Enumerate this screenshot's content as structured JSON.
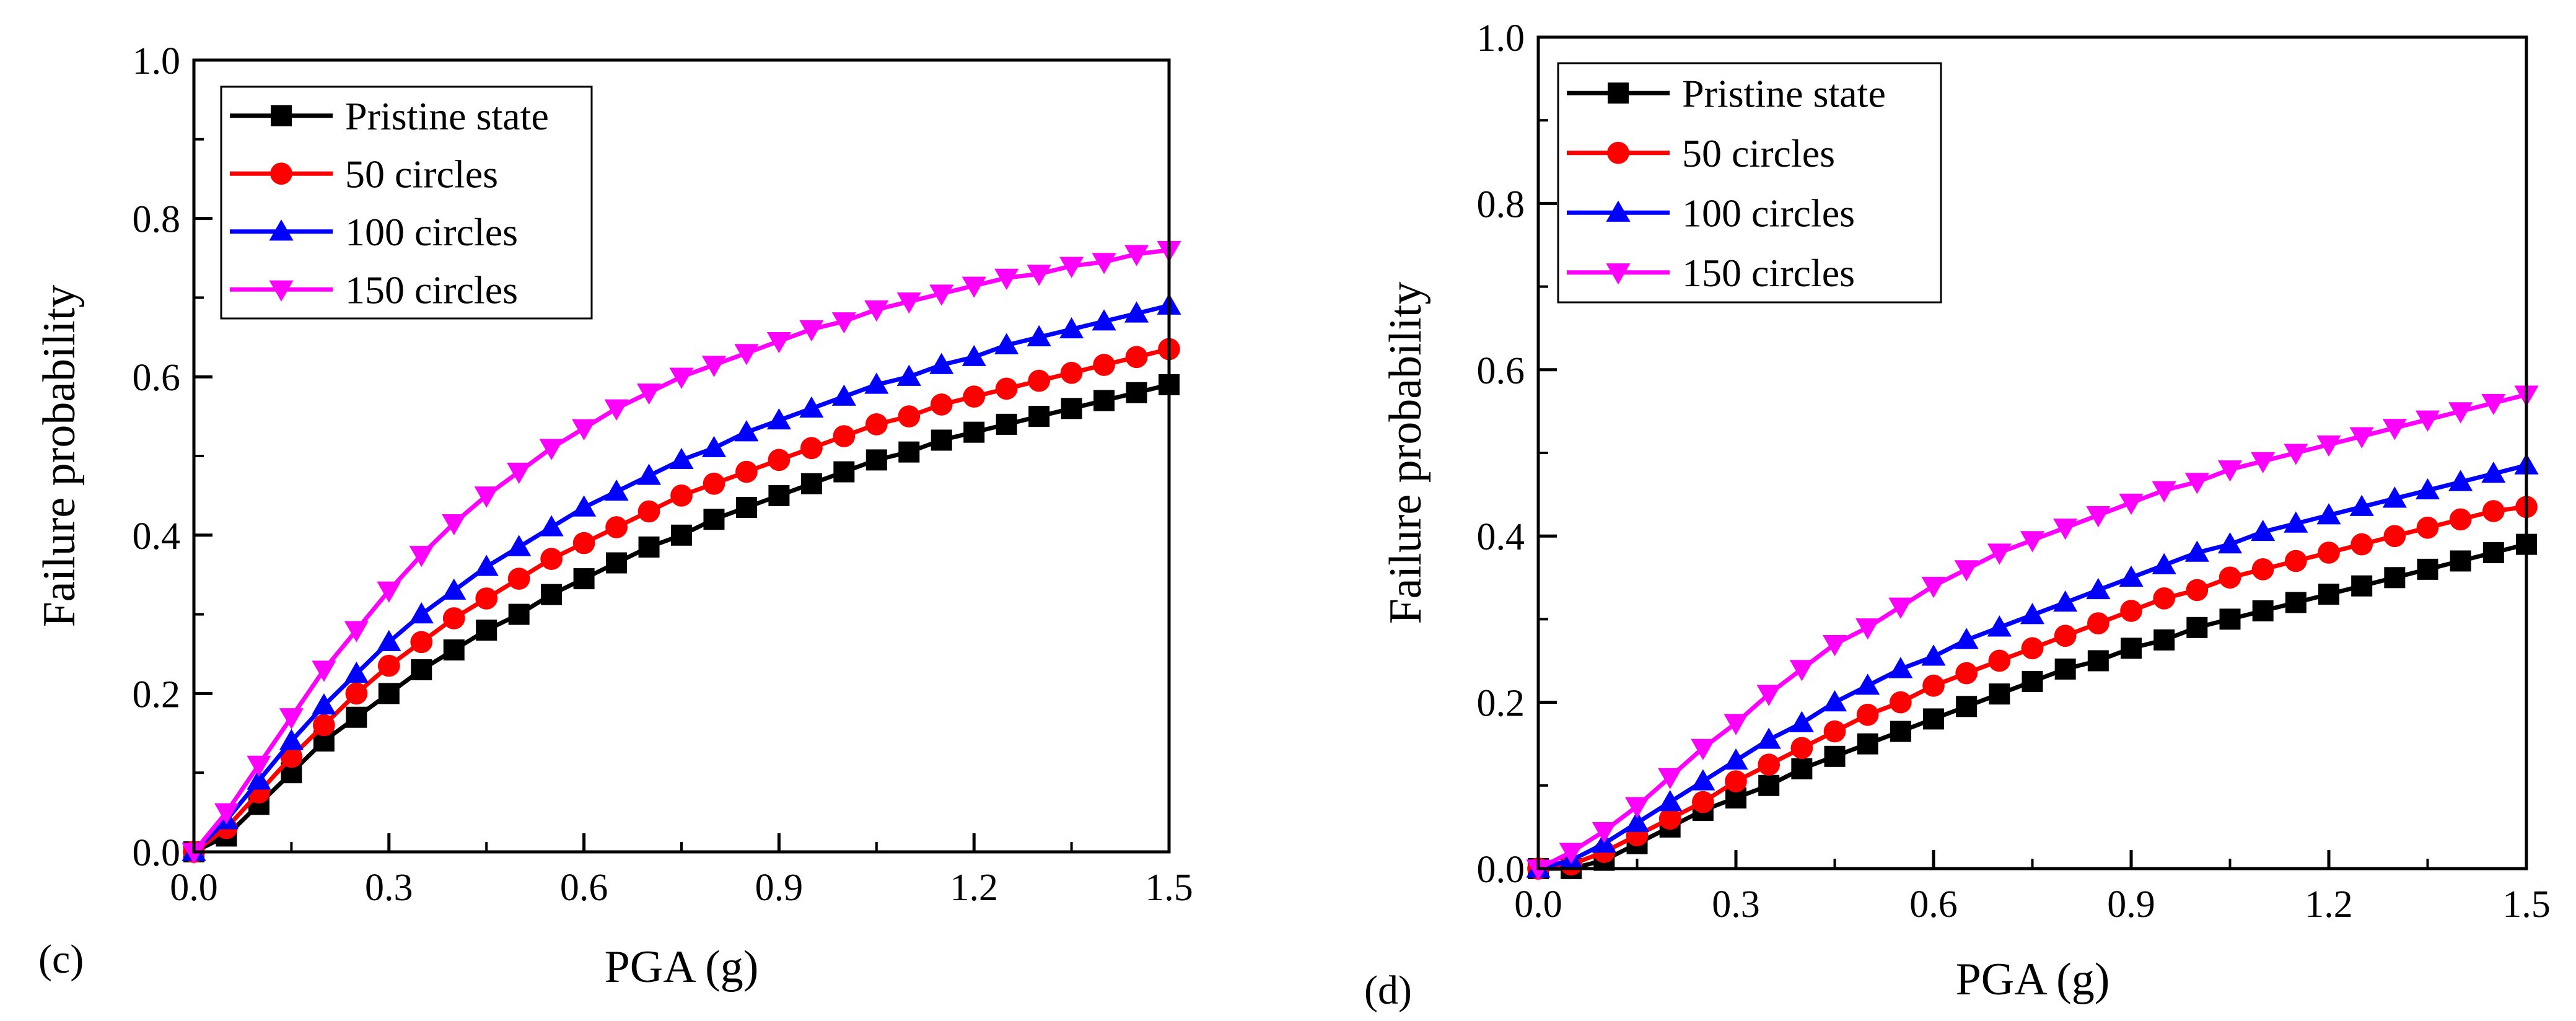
{
  "chart_data": [
    {
      "type": "line",
      "panel_label": "(c)",
      "xlabel": "PGA (g)",
      "ylabel": "Failure probability",
      "xlim": [
        0.0,
        1.5
      ],
      "ylim": [
        0.0,
        1.0
      ],
      "xticks": [
        "0.0",
        "0.3",
        "0.6",
        "0.9",
        "1.2",
        "1.5"
      ],
      "yticks": [
        "0.0",
        "0.2",
        "0.4",
        "0.6",
        "0.8",
        "1.0"
      ],
      "legend_position": "top-left",
      "x": [
        0.0,
        0.05,
        0.1,
        0.15,
        0.2,
        0.25,
        0.3,
        0.35,
        0.4,
        0.45,
        0.5,
        0.55,
        0.6,
        0.65,
        0.7,
        0.75,
        0.8,
        0.85,
        0.9,
        0.95,
        1.0,
        1.05,
        1.1,
        1.15,
        1.2,
        1.25,
        1.3,
        1.35,
        1.4,
        1.45,
        1.5
      ],
      "series": [
        {
          "name": "Pristine state",
          "color": "#000000",
          "marker": "square",
          "values": [
            0.0,
            0.02,
            0.06,
            0.1,
            0.14,
            0.17,
            0.2,
            0.23,
            0.255,
            0.28,
            0.3,
            0.325,
            0.345,
            0.365,
            0.385,
            0.4,
            0.42,
            0.435,
            0.45,
            0.465,
            0.48,
            0.495,
            0.505,
            0.52,
            0.53,
            0.54,
            0.55,
            0.56,
            0.57,
            0.58,
            0.59
          ]
        },
        {
          "name": "50 circles",
          "color": "#ff0000",
          "marker": "circle",
          "values": [
            0.0,
            0.03,
            0.075,
            0.12,
            0.16,
            0.2,
            0.235,
            0.265,
            0.295,
            0.32,
            0.345,
            0.37,
            0.39,
            0.41,
            0.43,
            0.45,
            0.465,
            0.48,
            0.495,
            0.51,
            0.525,
            0.54,
            0.55,
            0.565,
            0.575,
            0.585,
            0.595,
            0.605,
            0.615,
            0.625,
            0.635
          ]
        },
        {
          "name": "100 circles",
          "color": "#0000ff",
          "marker": "triangle-up",
          "values": [
            0.0,
            0.04,
            0.09,
            0.14,
            0.185,
            0.225,
            0.265,
            0.3,
            0.33,
            0.36,
            0.385,
            0.41,
            0.435,
            0.455,
            0.475,
            0.495,
            0.51,
            0.53,
            0.545,
            0.56,
            0.575,
            0.59,
            0.6,
            0.615,
            0.625,
            0.64,
            0.65,
            0.66,
            0.67,
            0.68,
            0.69
          ]
        },
        {
          "name": "150 circles",
          "color": "#ff00ff",
          "marker": "triangle-down",
          "values": [
            0.0,
            0.05,
            0.11,
            0.17,
            0.23,
            0.28,
            0.33,
            0.375,
            0.415,
            0.45,
            0.48,
            0.51,
            0.535,
            0.56,
            0.58,
            0.6,
            0.615,
            0.63,
            0.645,
            0.66,
            0.67,
            0.685,
            0.695,
            0.705,
            0.715,
            0.725,
            0.73,
            0.74,
            0.745,
            0.755,
            0.76
          ]
        }
      ]
    },
    {
      "type": "line",
      "panel_label": "(d)",
      "xlabel": "PGA (g)",
      "ylabel": "Failure probability",
      "xlim": [
        0.0,
        1.5
      ],
      "ylim": [
        0.0,
        1.0
      ],
      "xticks": [
        "0.0",
        "0.3",
        "0.6",
        "0.9",
        "1.2",
        "1.5"
      ],
      "yticks": [
        "0.0",
        "0.2",
        "0.4",
        "0.6",
        "0.8",
        "1.0"
      ],
      "legend_position": "top-left",
      "x": [
        0.0,
        0.05,
        0.1,
        0.15,
        0.2,
        0.25,
        0.3,
        0.35,
        0.4,
        0.45,
        0.5,
        0.55,
        0.6,
        0.65,
        0.7,
        0.75,
        0.8,
        0.85,
        0.9,
        0.95,
        1.0,
        1.05,
        1.1,
        1.15,
        1.2,
        1.25,
        1.3,
        1.35,
        1.4,
        1.45,
        1.5
      ],
      "series": [
        {
          "name": "Pristine state",
          "color": "#000000",
          "marker": "square",
          "values": [
            0.0,
            0.0,
            0.01,
            0.03,
            0.05,
            0.07,
            0.085,
            0.1,
            0.12,
            0.135,
            0.15,
            0.165,
            0.18,
            0.195,
            0.21,
            0.225,
            0.24,
            0.25,
            0.265,
            0.275,
            0.29,
            0.3,
            0.31,
            0.32,
            0.33,
            0.34,
            0.35,
            0.36,
            0.37,
            0.38,
            0.39
          ]
        },
        {
          "name": "50 circles",
          "color": "#ff0000",
          "marker": "circle",
          "values": [
            0.0,
            0.005,
            0.02,
            0.04,
            0.06,
            0.08,
            0.105,
            0.125,
            0.145,
            0.165,
            0.185,
            0.2,
            0.22,
            0.235,
            0.25,
            0.265,
            0.28,
            0.295,
            0.31,
            0.325,
            0.335,
            0.35,
            0.36,
            0.37,
            0.38,
            0.39,
            0.4,
            0.41,
            0.42,
            0.43,
            0.435
          ]
        },
        {
          "name": "100 circles",
          "color": "#0000ff",
          "marker": "triangle-up",
          "values": [
            0.0,
            0.01,
            0.03,
            0.055,
            0.08,
            0.105,
            0.13,
            0.155,
            0.175,
            0.2,
            0.22,
            0.24,
            0.255,
            0.275,
            0.29,
            0.305,
            0.32,
            0.335,
            0.35,
            0.365,
            0.38,
            0.39,
            0.405,
            0.415,
            0.425,
            0.435,
            0.445,
            0.455,
            0.465,
            0.475,
            0.485
          ]
        },
        {
          "name": "150 circles",
          "color": "#ff00ff",
          "marker": "triangle-down",
          "values": [
            0.0,
            0.02,
            0.045,
            0.075,
            0.11,
            0.145,
            0.175,
            0.21,
            0.24,
            0.27,
            0.29,
            0.315,
            0.34,
            0.36,
            0.38,
            0.395,
            0.41,
            0.425,
            0.44,
            0.455,
            0.465,
            0.48,
            0.49,
            0.5,
            0.51,
            0.52,
            0.53,
            0.54,
            0.55,
            0.56,
            0.57
          ]
        }
      ]
    }
  ]
}
